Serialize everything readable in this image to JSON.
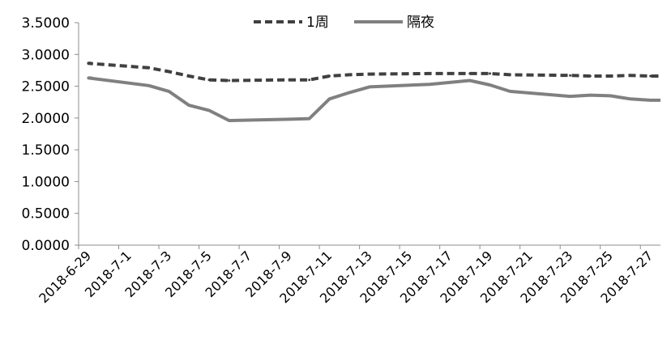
{
  "chart_data": {
    "type": "line",
    "legend_position": "top",
    "grid": false,
    "x_tick_labels": [
      "2018-6-29",
      "2018-7-1",
      "2018-7-3",
      "2018-7-5",
      "2018-7-7",
      "2018-7-9",
      "2018-7-11",
      "2018-7-13",
      "2018-7-15",
      "2018-7-17",
      "2018-7-19",
      "2018-7-21",
      "2018-7-23",
      "2018-7-25",
      "2018-7-27"
    ],
    "x": [
      "2018-6-29",
      "2018-7-2",
      "2018-7-3",
      "2018-7-4",
      "2018-7-5",
      "2018-7-6",
      "2018-7-9",
      "2018-7-10",
      "2018-7-11",
      "2018-7-12",
      "2018-7-13",
      "2018-7-16",
      "2018-7-17",
      "2018-7-18",
      "2018-7-19",
      "2018-7-20",
      "2018-7-23",
      "2018-7-24",
      "2018-7-25",
      "2018-7-26",
      "2018-7-27"
    ],
    "ylim": [
      0,
      3.5
    ],
    "y_ticks": [
      "0.0000",
      "0.5000",
      "1.0000",
      "1.5000",
      "2.0000",
      "2.5000",
      "3.0000",
      "3.5000"
    ],
    "series": [
      {
        "name": "1周",
        "style": "dashed",
        "color": "#404040",
        "values": [
          2.86,
          2.79,
          2.73,
          2.66,
          2.6,
          2.59,
          2.6,
          2.6,
          2.66,
          2.68,
          2.69,
          2.7,
          2.7,
          2.7,
          2.7,
          2.68,
          2.67,
          2.66,
          2.66,
          2.67,
          2.66
        ]
      },
      {
        "name": "隔夜",
        "style": "solid",
        "color": "#808080",
        "values": [
          2.63,
          2.51,
          2.42,
          2.2,
          2.12,
          1.96,
          1.98,
          1.99,
          2.3,
          2.4,
          2.49,
          2.53,
          2.56,
          2.59,
          2.52,
          2.42,
          2.34,
          2.36,
          2.35,
          2.3,
          2.28
        ]
      }
    ]
  }
}
